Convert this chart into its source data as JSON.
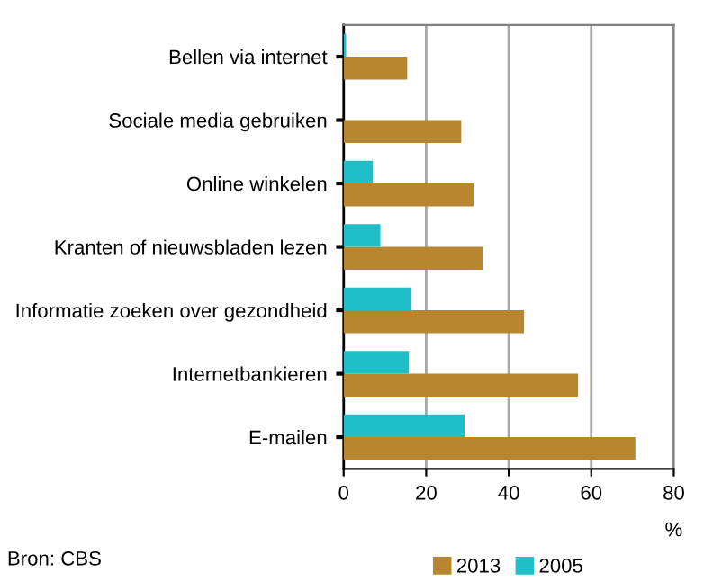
{
  "chart_data": {
    "type": "bar",
    "orientation": "horizontal",
    "categories": [
      "Bellen via internet",
      "Sociale media gebruiken",
      "Online winkelen",
      "Kranten of nieuwsbladen lezen",
      "Informatie zoeken over gezondheid",
      "Internetbankieren",
      "E-mailen"
    ],
    "series": [
      {
        "name": "2013",
        "color": "#b8862f",
        "values": [
          15.4,
          28.5,
          31.5,
          33.7,
          43.7,
          56.8,
          70.7
        ]
      },
      {
        "name": "2005",
        "color": "#1fbec8",
        "values": [
          0.6,
          null,
          7.1,
          8.9,
          16.3,
          15.8,
          29.3
        ]
      }
    ],
    "xlim": [
      0,
      80
    ],
    "xticks": [
      0,
      20,
      40,
      60,
      80
    ],
    "xlabel": "%",
    "grid": "x",
    "legend": "bottom",
    "annotations": [
      "Bron: CBS"
    ]
  }
}
